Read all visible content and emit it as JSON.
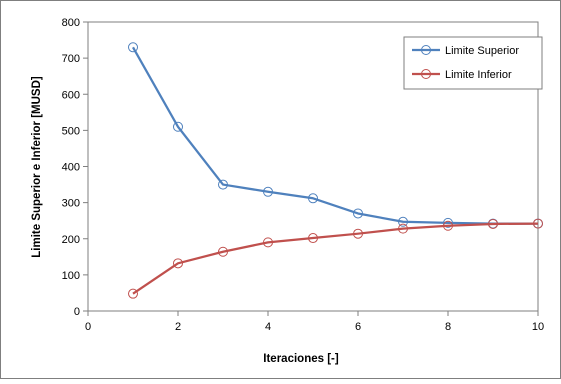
{
  "chart_data": {
    "type": "line",
    "title": "",
    "xlabel": "Iteraciones [-]",
    "ylabel": "Limite Superior e Inferior [MUSD]",
    "xlim": [
      0,
      10
    ],
    "ylim": [
      0,
      800
    ],
    "xticks": [
      0,
      2,
      4,
      6,
      8,
      10
    ],
    "yticks": [
      0,
      100,
      200,
      300,
      400,
      500,
      600,
      700,
      800
    ],
    "grid": false,
    "legend_position": "top-right",
    "x": [
      1,
      2,
      3,
      4,
      5,
      6,
      7,
      8,
      9,
      10
    ],
    "series": [
      {
        "name": "Limite Superior",
        "color": "#4F81BD",
        "marker": "circle-open",
        "values": [
          730,
          510,
          350,
          330,
          312,
          270,
          247,
          244,
          242,
          242
        ]
      },
      {
        "name": "Limite Inferior",
        "color": "#C0504D",
        "marker": "circle-open",
        "values": [
          48,
          132,
          164,
          190,
          202,
          214,
          228,
          236,
          241,
          242
        ]
      }
    ]
  }
}
